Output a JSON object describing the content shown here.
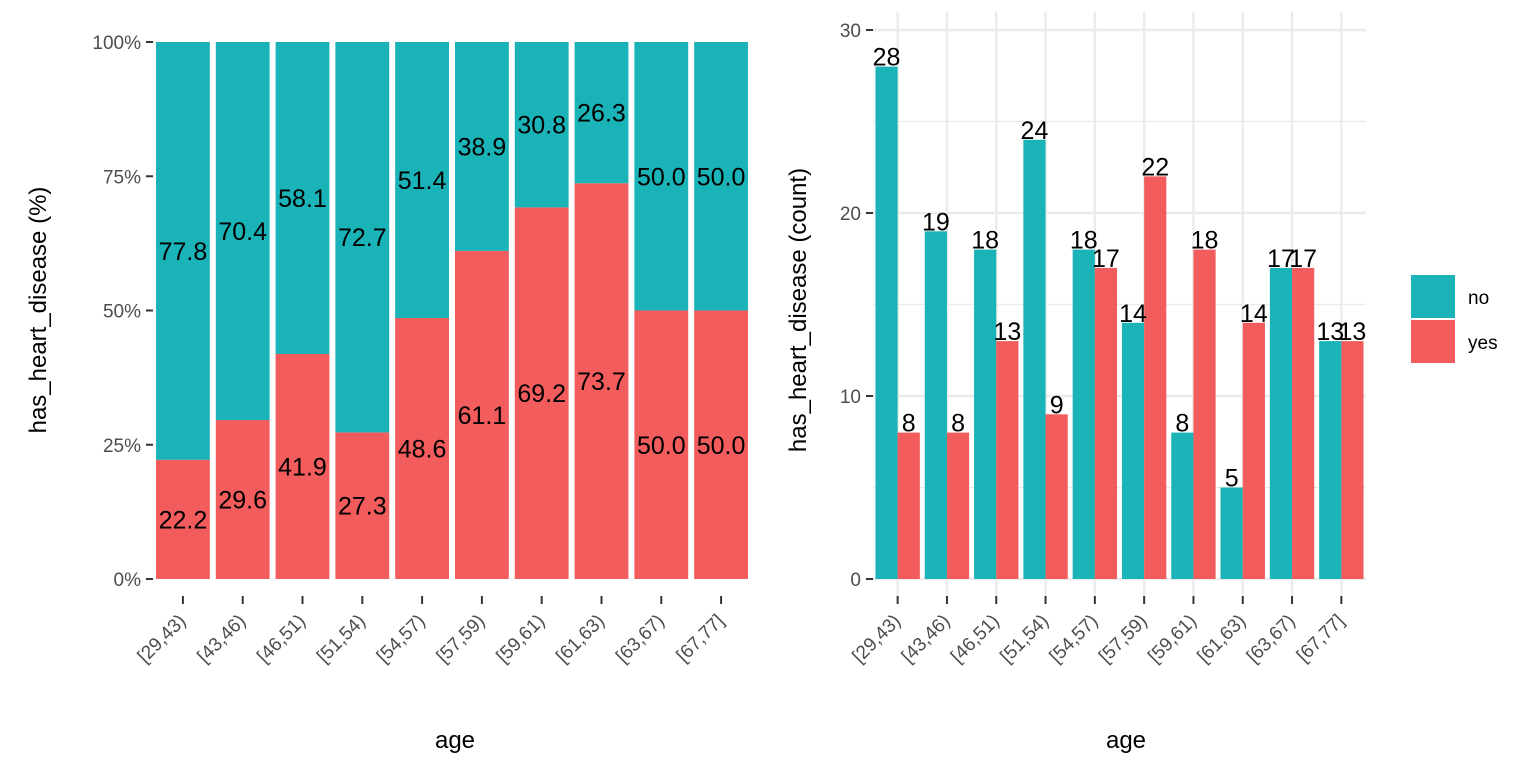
{
  "colors": {
    "no": "#1AB3B8",
    "yes": "#F25C5C",
    "grid": "#EBEBEB",
    "tick": "#333333"
  },
  "legend": {
    "placement": "right",
    "items": [
      {
        "label": "no",
        "color_key": "no"
      },
      {
        "label": "yes",
        "color_key": "yes"
      }
    ]
  },
  "chart_data": [
    {
      "type": "bar",
      "stacked": true,
      "grid": false,
      "xlabel": "age",
      "ylabel": "has_heart_disease  (%)",
      "ylim": [
        0,
        100
      ],
      "yticks": [
        "0%",
        "25%",
        "50%",
        "75%",
        "100%"
      ],
      "categories": [
        "[29,43)",
        "[43,46)",
        "[46,51)",
        "[51,54)",
        "[54,57)",
        "[57,59)",
        "[59,61)",
        "[61,63)",
        "[63,67)",
        "[67,77]"
      ],
      "series": [
        {
          "name": "yes",
          "values": [
            22.2,
            29.6,
            41.9,
            27.3,
            48.6,
            61.1,
            69.2,
            73.7,
            50.0,
            50.0
          ],
          "labels": [
            "22.2",
            "29.6",
            "41.9",
            "27.3",
            "48.6",
            "61.1",
            "69.2",
            "73.7",
            "50.0",
            "50.0"
          ]
        },
        {
          "name": "no",
          "values": [
            77.8,
            70.4,
            58.1,
            72.7,
            51.4,
            38.9,
            30.8,
            26.3,
            50.0,
            50.0
          ],
          "labels": [
            "77.8",
            "70.4",
            "58.1",
            "72.7",
            "51.4",
            "38.9",
            "30.8",
            "26.3",
            "50.0",
            "50.0"
          ]
        }
      ]
    },
    {
      "type": "bar",
      "stacked": false,
      "grid": true,
      "xlabel": "age",
      "ylabel": "has_heart_disease  (count)",
      "ylim": [
        0,
        30
      ],
      "yticks": [
        "0",
        "10",
        "20",
        "30"
      ],
      "categories": [
        "[29,43)",
        "[43,46)",
        "[46,51)",
        "[51,54)",
        "[54,57)",
        "[57,59)",
        "[59,61)",
        "[61,63)",
        "[63,67)",
        "[67,77]"
      ],
      "series": [
        {
          "name": "no",
          "values": [
            28,
            19,
            18,
            24,
            18,
            14,
            8,
            5,
            17,
            13
          ]
        },
        {
          "name": "yes",
          "values": [
            8,
            8,
            13,
            9,
            17,
            22,
            18,
            14,
            17,
            13
          ]
        }
      ]
    }
  ]
}
